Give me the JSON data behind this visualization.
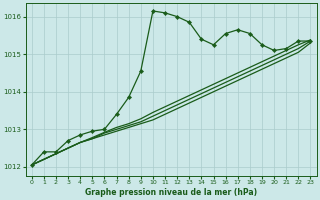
{
  "bg_color": "#cce8e8",
  "plot_bg_color": "#cce8e8",
  "line_color": "#1a5c1a",
  "grid_color": "#aacccc",
  "ylim": [
    1011.75,
    1016.35
  ],
  "xlim": [
    -0.5,
    23.5
  ],
  "yticks": [
    1012,
    1013,
    1014,
    1015,
    1016
  ],
  "xticks": [
    0,
    1,
    2,
    3,
    4,
    5,
    6,
    7,
    8,
    9,
    10,
    11,
    12,
    13,
    14,
    15,
    16,
    17,
    18,
    19,
    20,
    21,
    22,
    23
  ],
  "xlabel": "Graphe pression niveau de la mer (hPa)",
  "linewidth": 0.9,
  "markersize": 2.2,
  "series_main": [
    1012.05,
    1012.4,
    1012.4,
    1012.7,
    1012.85,
    1012.95,
    1013.0,
    1013.4,
    1013.85,
    1014.55,
    1016.15,
    1016.1,
    1016.0,
    1015.85,
    1015.4,
    1015.25,
    1015.55,
    1015.65,
    1015.55,
    1015.25,
    1015.1,
    1015.15,
    1015.35,
    1015.35
  ],
  "series_line1": [
    1012.05,
    1012.2,
    1012.35,
    1012.5,
    1012.65,
    1012.75,
    1012.85,
    1012.95,
    1013.05,
    1013.15,
    1013.25,
    1013.4,
    1013.55,
    1013.7,
    1013.85,
    1014.0,
    1014.15,
    1014.3,
    1014.45,
    1014.6,
    1014.75,
    1014.9,
    1015.05,
    1015.3
  ],
  "series_line2": [
    1012.05,
    1012.2,
    1012.35,
    1012.5,
    1012.65,
    1012.75,
    1012.9,
    1013.0,
    1013.1,
    1013.2,
    1013.35,
    1013.5,
    1013.65,
    1013.8,
    1013.95,
    1014.1,
    1014.25,
    1014.4,
    1014.55,
    1014.7,
    1014.85,
    1015.0,
    1015.15,
    1015.35
  ],
  "series_line3": [
    1012.05,
    1012.2,
    1012.35,
    1012.5,
    1012.65,
    1012.78,
    1012.92,
    1013.05,
    1013.15,
    1013.28,
    1013.45,
    1013.6,
    1013.75,
    1013.9,
    1014.05,
    1014.2,
    1014.35,
    1014.5,
    1014.65,
    1014.8,
    1014.95,
    1015.1,
    1015.25,
    1015.38
  ]
}
